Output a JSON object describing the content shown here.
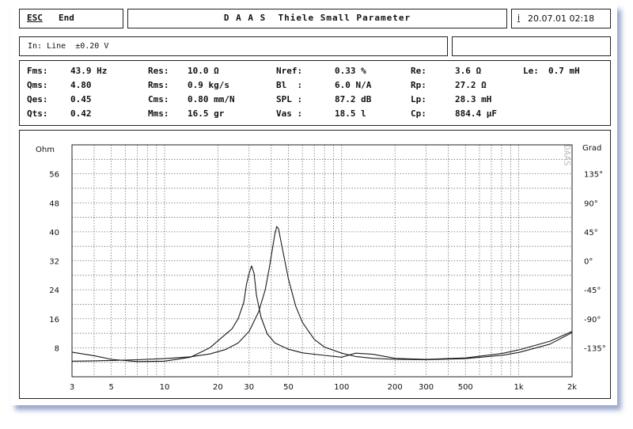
{
  "header": {
    "esc_label": "ESC",
    "end_label": "End",
    "title": "D A A S  Thiele Small Parameter",
    "info_icon": "i",
    "datetime": "20.07.01 02:18"
  },
  "input_line": "In: Line  ±0.20 V",
  "params": {
    "col1": [
      {
        "label": "Fms:",
        "value": "43.9 Hz"
      },
      {
        "label": "Qms:",
        "value": "4.80"
      },
      {
        "label": "Qes:",
        "value": "0.45"
      },
      {
        "label": "Qts:",
        "value": "0.42"
      }
    ],
    "col2": [
      {
        "label": "Res:",
        "value": "10.0 Ω"
      },
      {
        "label": "Rms:",
        "value": "0.9 kg/s"
      },
      {
        "label": "Cms:",
        "value": "0.80 mm/N"
      },
      {
        "label": "Mms:",
        "value": "16.5 gr"
      }
    ],
    "col3": [
      {
        "label": "Nref:",
        "value": "0.33 %"
      },
      {
        "label": "Bl  :",
        "value": "6.0 N/A"
      },
      {
        "label": "SPL :",
        "value": "87.2 dB"
      },
      {
        "label": "Vas :",
        "value": "18.5 l"
      }
    ],
    "col4": [
      {
        "label": "Re:",
        "value": "3.6 Ω"
      },
      {
        "label": "Rp:",
        "value": "27.2 Ω"
      },
      {
        "label": "Lp:",
        "value": "28.3 mH"
      },
      {
        "label": "Cp:",
        "value": "884.4 µF"
      }
    ],
    "col5": [
      {
        "label": "Le:",
        "value": "0.7 mH"
      }
    ]
  },
  "chart_data": {
    "type": "line",
    "left_axis_label": "Ohm",
    "right_axis_label": "Grad",
    "watermark": "DAAS",
    "x_scale": "log",
    "xlim": [
      3,
      2000
    ],
    "ylim": [
      0,
      64
    ],
    "x_ticks": [
      {
        "value": 3,
        "label": "3"
      },
      {
        "value": 5,
        "label": "5"
      },
      {
        "value": 10,
        "label": "10"
      },
      {
        "value": 20,
        "label": "20"
      },
      {
        "value": 30,
        "label": "30"
      },
      {
        "value": 50,
        "label": "50"
      },
      {
        "value": 100,
        "label": "100"
      },
      {
        "value": 200,
        "label": "200"
      },
      {
        "value": 300,
        "label": "300"
      },
      {
        "value": 500,
        "label": "500"
      },
      {
        "value": 1000,
        "label": "1k"
      },
      {
        "value": 2000,
        "label": "2k"
      }
    ],
    "y_ticks_left": [
      {
        "value": 56,
        "label": "56"
      },
      {
        "value": 48,
        "label": "48"
      },
      {
        "value": 40,
        "label": "40"
      },
      {
        "value": 32,
        "label": "32"
      },
      {
        "value": 24,
        "label": "24"
      },
      {
        "value": 16,
        "label": "16"
      },
      {
        "value": 8,
        "label": "8"
      }
    ],
    "y_ticks_right": [
      {
        "value": 56,
        "label": "135°"
      },
      {
        "value": 48,
        "label": "90°"
      },
      {
        "value": 40,
        "label": "45°"
      },
      {
        "value": 32,
        "label": "0°"
      },
      {
        "value": 24,
        "label": "-45°"
      },
      {
        "value": 16,
        "label": "-90°"
      },
      {
        "value": 8,
        "label": "-135°"
      }
    ],
    "grid": true,
    "series": [
      {
        "x": [
          3,
          4,
          5,
          7,
          10,
          14,
          18,
          21,
          24,
          26,
          28,
          29,
          30,
          31,
          32,
          33,
          35,
          38,
          42,
          50,
          60,
          80,
          100,
          120,
          150,
          200,
          300,
          500,
          800,
          1000,
          1500,
          2000
        ],
        "y": [
          6.8,
          5.8,
          4.8,
          4.2,
          4.3,
          5.4,
          8.0,
          10.8,
          13.2,
          16.0,
          20.5,
          25.5,
          28.5,
          30.6,
          28.5,
          22.5,
          16.5,
          11.8,
          9.3,
          7.6,
          6.6,
          5.9,
          5.4,
          6.5,
          6.2,
          5.1,
          4.8,
          5.2,
          6.4,
          7.4,
          9.8,
          12.5
        ]
      },
      {
        "x": [
          3,
          4,
          5,
          7,
          10,
          14,
          18,
          22,
          26,
          30,
          34,
          37,
          39,
          41,
          42,
          43,
          44,
          46,
          50,
          55,
          60,
          70,
          80,
          100,
          120,
          150,
          200,
          300,
          500,
          800,
          1000,
          1500,
          2000
        ],
        "y": [
          4.3,
          4.4,
          4.5,
          4.7,
          5.0,
          5.5,
          6.3,
          7.5,
          9.3,
          12.5,
          18.0,
          24.0,
          30.0,
          36.5,
          39.5,
          41.5,
          40.8,
          36.0,
          27.0,
          19.5,
          15.0,
          10.3,
          8.2,
          6.5,
          5.6,
          5.1,
          4.8,
          4.7,
          5.0,
          5.9,
          6.7,
          9.0,
          12.2
        ]
      }
    ]
  }
}
